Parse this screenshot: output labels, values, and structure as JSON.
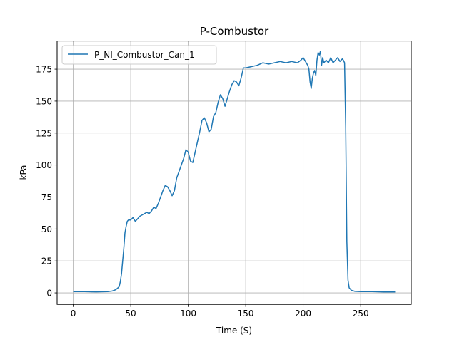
{
  "chart_data": {
    "type": "line",
    "title": "P-Combustor",
    "xlabel": "Time (S)",
    "ylabel": "kPa",
    "xlim": [
      -14,
      294
    ],
    "ylim": [
      -9,
      197
    ],
    "xticks": [
      0,
      50,
      100,
      150,
      200,
      250
    ],
    "yticks": [
      0,
      25,
      50,
      75,
      100,
      125,
      150,
      175
    ],
    "grid": true,
    "legend": {
      "position": "top-left"
    },
    "series": [
      {
        "name": "P_NI_Combustor_Can_1",
        "color": "#1f77b4",
        "x": [
          0,
          10,
          20,
          30,
          34,
          37,
          39,
          40,
          41,
          42,
          43,
          44,
          45,
          46,
          47,
          48,
          50,
          52,
          54,
          56,
          58,
          60,
          62,
          64,
          66,
          68,
          70,
          72,
          74,
          76,
          78,
          80,
          82,
          84,
          86,
          88,
          90,
          92,
          94,
          96,
          98,
          100,
          102,
          104,
          106,
          108,
          110,
          112,
          114,
          116,
          118,
          120,
          122,
          124,
          126,
          128,
          130,
          132,
          134,
          136,
          138,
          140,
          142,
          144,
          146,
          148,
          150,
          155,
          160,
          165,
          170,
          175,
          180,
          185,
          190,
          195,
          198,
          200,
          202,
          204,
          205,
          206,
          207,
          208,
          209,
          210,
          211,
          212,
          213,
          214,
          215,
          216,
          217,
          218,
          220,
          222,
          224,
          226,
          228,
          230,
          232,
          234,
          235,
          236,
          237,
          238,
          239,
          240,
          242,
          245,
          250,
          260,
          270,
          280
        ],
        "y": [
          1,
          1,
          0.8,
          1,
          1.5,
          2.5,
          4,
          5,
          9,
          15,
          25,
          35,
          47,
          52,
          56,
          57,
          57,
          59,
          56,
          58,
          60,
          61,
          62,
          63,
          62,
          64,
          67,
          66,
          70,
          75,
          80,
          84,
          83,
          80,
          76,
          80,
          90,
          95,
          100,
          105,
          112,
          110,
          103,
          102,
          110,
          118,
          126,
          135,
          137,
          133,
          126,
          128,
          138,
          141,
          149,
          155,
          152,
          146,
          152,
          158,
          163,
          166,
          165,
          162,
          168,
          176,
          176,
          177,
          178,
          180,
          179,
          180,
          181,
          180,
          181,
          180,
          182,
          184,
          181,
          178,
          175,
          165,
          160,
          168,
          172,
          174,
          170,
          182,
          188,
          186,
          189,
          178,
          184,
          180,
          182,
          180,
          184,
          180,
          182,
          184,
          181,
          183,
          182,
          180,
          130,
          40,
          10,
          4,
          2,
          1.2,
          1,
          1,
          0.7,
          0.7
        ]
      }
    ]
  }
}
